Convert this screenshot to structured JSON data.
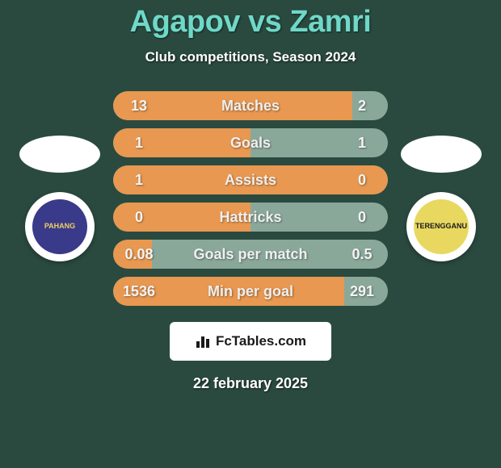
{
  "background": "#2a4a3f",
  "title": {
    "text": "Agapov vs Zamri",
    "color": "#6fd8c9",
    "fontsize": 38,
    "fontweight": 800
  },
  "subtitle": {
    "text": "Club competitions, Season 2024",
    "color": "#ffffff",
    "fontsize": 17
  },
  "left": {
    "flag": {
      "top_color": "#ffffff",
      "bottom_color": "#ffffff"
    },
    "crest": {
      "bg": "#ffffff",
      "inner_bg": "#3a3a8a",
      "text": "PAHANG",
      "text_color": "#f0d060"
    }
  },
  "right": {
    "flag": {
      "top_color": "#ffffff",
      "bottom_color": "#ffffff"
    },
    "crest": {
      "bg": "#ffffff",
      "inner_bg": "#e8d860",
      "text": "TERENGGANU",
      "text_color": "#1a1a1a"
    }
  },
  "stats": {
    "bar_bg": "#8aa89a",
    "fill_color": "#e89850",
    "label_color": "#efefef",
    "left_value_color": "#f4f4f4",
    "right_value_color": "#f4f4f4",
    "rows": [
      {
        "left": "13",
        "label": "Matches",
        "right": "2",
        "fill_pct": 87
      },
      {
        "left": "1",
        "label": "Goals",
        "right": "1",
        "fill_pct": 50
      },
      {
        "left": "1",
        "label": "Assists",
        "right": "0",
        "fill_pct": 100
      },
      {
        "left": "0",
        "label": "Hattricks",
        "right": "0",
        "fill_pct": 50
      },
      {
        "left": "0.08",
        "label": "Goals per match",
        "right": "0.5",
        "fill_pct": 14
      },
      {
        "left": "1536",
        "label": "Min per goal",
        "right": "291",
        "fill_pct": 84
      }
    ]
  },
  "footer": {
    "box_bg": "#ffffff",
    "icon_color": "#1a1a1a",
    "text": "FcTables.com",
    "text_color": "#1a1a1a"
  },
  "date": {
    "text": "22 february 2025",
    "color": "#ffffff"
  }
}
